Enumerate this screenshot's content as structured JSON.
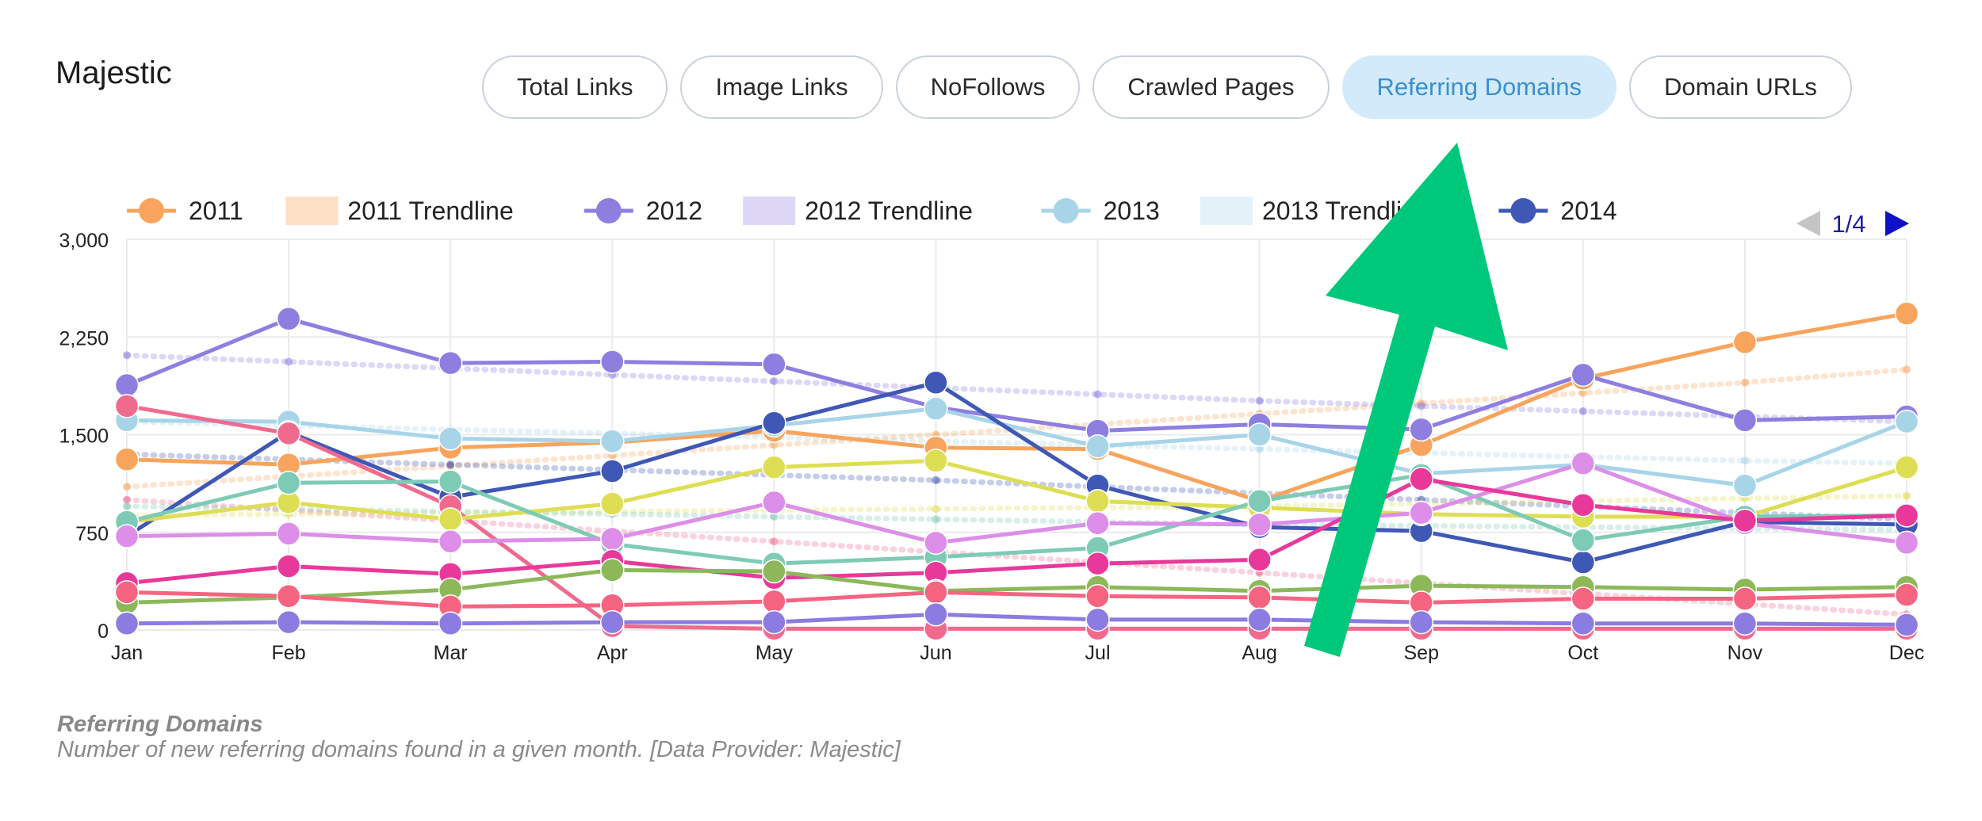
{
  "app": {
    "title": "Majestic"
  },
  "tabs": [
    {
      "label": "Total Links",
      "active": false
    },
    {
      "label": "Image Links",
      "active": false
    },
    {
      "label": "NoFollows",
      "active": false
    },
    {
      "label": "Crawled Pages",
      "active": false
    },
    {
      "label": "Referring Domains",
      "active": true
    },
    {
      "label": "Domain URLs",
      "active": false
    }
  ],
  "legend": {
    "page": "1/4",
    "items": [
      {
        "label": "2011",
        "kind": "line",
        "color": "#f8a45c"
      },
      {
        "label": "2011 Trendline",
        "kind": "band",
        "color": "#fde0c6"
      },
      {
        "label": "2012",
        "kind": "line",
        "color": "#8e7ee0"
      },
      {
        "label": "2012 Trendline",
        "kind": "band",
        "color": "#ddd7f5"
      },
      {
        "label": "2013",
        "kind": "line",
        "color": "#a8d4e8"
      },
      {
        "label": "2013 Trendline",
        "kind": "band",
        "color": "#e4f1f8"
      },
      {
        "label": "2014",
        "kind": "line",
        "color": "#3f58b5"
      }
    ]
  },
  "caption": {
    "title": "Referring Domains",
    "description": "Number of new referring domains found in a given month. [Data Provider: Majestic]"
  },
  "annotation": {
    "type": "arrow",
    "color": "#00c87a",
    "points_to": "Referring Domains"
  },
  "chart_data": {
    "type": "line",
    "categories": [
      "Jan",
      "Feb",
      "Mar",
      "Apr",
      "May",
      "Jun",
      "Jul",
      "Aug",
      "Sep",
      "Oct",
      "Nov",
      "Dec"
    ],
    "ylim": [
      0,
      3000
    ],
    "yticks": [
      0,
      750,
      1500,
      2250,
      3000
    ],
    "ytick_labels": [
      "0",
      "750",
      "1,500",
      "2,250",
      "3,000"
    ],
    "grid": true,
    "legend_position": "top",
    "series": [
      {
        "name": "2011",
        "color": "#f8a45c",
        "values": [
          1310,
          1270,
          1400,
          1440,
          1530,
          1400,
          1390,
          990,
          1420,
          1930,
          2210,
          2430
        ]
      },
      {
        "name": "2012",
        "color": "#8e7ee0",
        "values": [
          1880,
          2390,
          2050,
          2060,
          2040,
          1710,
          1530,
          1580,
          1540,
          1960,
          1610,
          1640
        ]
      },
      {
        "name": "2013",
        "color": "#a8d4e8",
        "values": [
          1610,
          1600,
          1470,
          1450,
          1570,
          1700,
          1410,
          1500,
          1200,
          1270,
          1110,
          1600
        ]
      },
      {
        "name": "2014",
        "color": "#3f58b5",
        "values": [
          720,
          1520,
          1020,
          1220,
          1590,
          1900,
          1110,
          790,
          760,
          520,
          830,
          810
        ]
      },
      {
        "color": "#f06a8e",
        "values": [
          1720,
          1510,
          950,
          30,
          10,
          10,
          10,
          10,
          10,
          10,
          10,
          10
        ]
      },
      {
        "color": "#dede55",
        "values": [
          830,
          980,
          850,
          970,
          1250,
          1300,
          990,
          940,
          890,
          870,
          870,
          1250
        ]
      },
      {
        "color": "#7ecbb5",
        "values": [
          830,
          1130,
          1140,
          660,
          510,
          560,
          630,
          990,
          1190,
          690,
          870,
          880
        ]
      },
      {
        "color": "#dc8ee8",
        "values": [
          720,
          740,
          680,
          700,
          980,
          670,
          820,
          810,
          900,
          1280,
          820,
          670
        ]
      },
      {
        "color": "#e8399a",
        "values": [
          360,
          490,
          430,
          530,
          400,
          440,
          510,
          540,
          1160,
          960,
          840,
          880
        ]
      },
      {
        "color": "#8cb85a",
        "values": [
          210,
          250,
          310,
          460,
          450,
          300,
          330,
          300,
          340,
          330,
          310,
          330
        ]
      },
      {
        "color": "#f56480",
        "values": [
          290,
          260,
          180,
          190,
          220,
          290,
          260,
          250,
          210,
          240,
          240,
          270
        ]
      },
      {
        "color": "#8c7be0",
        "values": [
          50,
          60,
          50,
          60,
          60,
          120,
          80,
          80,
          60,
          50,
          50,
          40
        ]
      }
    ],
    "trendlines": [
      {
        "name": "2011 Trendline",
        "color": "#f8a45c",
        "values": [
          1100,
          1180,
          1260,
          1340,
          1420,
          1500,
          1580,
          1660,
          1740,
          1820,
          1900,
          2000
        ]
      },
      {
        "name": "2012 Trendline",
        "color": "#8e7ee0",
        "values": [
          2110,
          2060,
          2010,
          1960,
          1910,
          1860,
          1810,
          1760,
          1720,
          1680,
          1640,
          1600
        ]
      },
      {
        "name": "2013 Trendline",
        "color": "#a8d4e8",
        "values": [
          1600,
          1570,
          1540,
          1510,
          1480,
          1450,
          1420,
          1390,
          1360,
          1330,
          1300,
          1280
        ]
      },
      {
        "color": "#3f58b5",
        "values": [
          1350,
          1310,
          1270,
          1230,
          1190,
          1150,
          1100,
          1050,
          1000,
          950,
          900,
          850
        ]
      },
      {
        "color": "#f06a8e",
        "values": [
          1000,
          920,
          840,
          760,
          680,
          600,
          520,
          440,
          360,
          280,
          200,
          120
        ]
      },
      {
        "color": "#dede55",
        "values": [
          880,
          890,
          900,
          910,
          920,
          930,
          940,
          950,
          970,
          990,
          1010,
          1030
        ]
      },
      {
        "color": "#7ecbb5",
        "values": [
          950,
          930,
          910,
          890,
          870,
          850,
          830,
          810,
          800,
          790,
          780,
          770
        ]
      }
    ]
  }
}
